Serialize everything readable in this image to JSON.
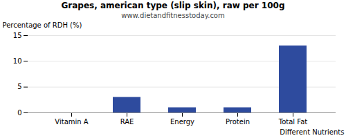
{
  "chart_data": {
    "type": "bar",
    "title": "Grapes, american type (slip skin), raw per 100g",
    "subtitle": "www.dietandfitnesstoday.com",
    "xlabel": "Different Nutrients",
    "ylabel": "Percentage of RDH (%)",
    "categories": [
      "Vitamin A",
      "RAE",
      "Energy",
      "Protein",
      "Total Fat"
    ],
    "values": [
      0.0,
      3.0,
      1.0,
      1.0,
      13.0
    ],
    "color": "#2e4b9e",
    "ylim": [
      0,
      15
    ],
    "yticks": [
      0,
      5,
      10,
      15
    ],
    "grid": true
  }
}
